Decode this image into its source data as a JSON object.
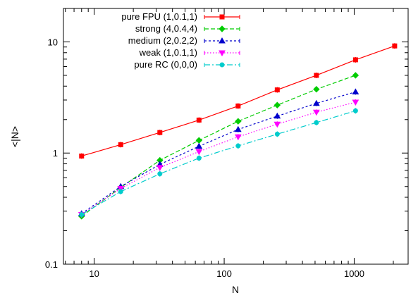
{
  "chart_data": {
    "type": "line",
    "title": "",
    "xlabel": "N",
    "ylabel": "<|N>",
    "xscale": "log",
    "yscale": "log",
    "xlim": [
      5.8,
      2600
    ],
    "ylim": [
      0.1,
      20
    ],
    "x_ticks": [
      10,
      100,
      1000
    ],
    "x_tick_labels": [
      "10",
      "100",
      "1000"
    ],
    "y_ticks": [
      0.1,
      1,
      10
    ],
    "y_tick_labels": [
      "0.1",
      "1",
      "10"
    ],
    "grid": false,
    "legend_position": "top-left",
    "series": [
      {
        "name": "pure FPU (1,0.1,1)",
        "color": "#ff0000",
        "marker": "square",
        "dash": "solid",
        "x": [
          8,
          16,
          32,
          64,
          128,
          256,
          512,
          1024,
          2048
        ],
        "y": [
          0.94,
          1.19,
          1.53,
          1.98,
          2.65,
          3.7,
          5.0,
          6.9,
          9.2
        ]
      },
      {
        "name": "strong (4,0.4,4)",
        "color": "#00cc00",
        "marker": "diamond",
        "dash": "dashed",
        "x": [
          8,
          16,
          32,
          64,
          128,
          256,
          512,
          1024
        ],
        "y": [
          0.27,
          0.49,
          0.86,
          1.3,
          1.93,
          2.7,
          3.75,
          5.0
        ]
      },
      {
        "name": "medium (2,0.2,2)",
        "color": "#0000cc",
        "marker": "triangle-up",
        "dash": "short-dash",
        "x": [
          8,
          16,
          32,
          64,
          128,
          256,
          512,
          1024
        ],
        "y": [
          0.285,
          0.5,
          0.79,
          1.15,
          1.63,
          2.15,
          2.8,
          3.55
        ]
      },
      {
        "name": "weak (1,0.1,1)",
        "color": "#ff00ff",
        "marker": "triangle-down",
        "dash": "dotted",
        "x": [
          8,
          16,
          32,
          64,
          128,
          256,
          512,
          1024
        ],
        "y": [
          0.28,
          0.48,
          0.74,
          1.03,
          1.4,
          1.82,
          2.33,
          2.87
        ]
      },
      {
        "name": "pure RC (0,0,0)",
        "color": "#00cccc",
        "marker": "circle",
        "dash": "dash-dot",
        "x": [
          8,
          16,
          32,
          64,
          128,
          256,
          512,
          1024
        ],
        "y": [
          0.28,
          0.45,
          0.65,
          0.9,
          1.16,
          1.48,
          1.88,
          2.4
        ]
      }
    ]
  }
}
